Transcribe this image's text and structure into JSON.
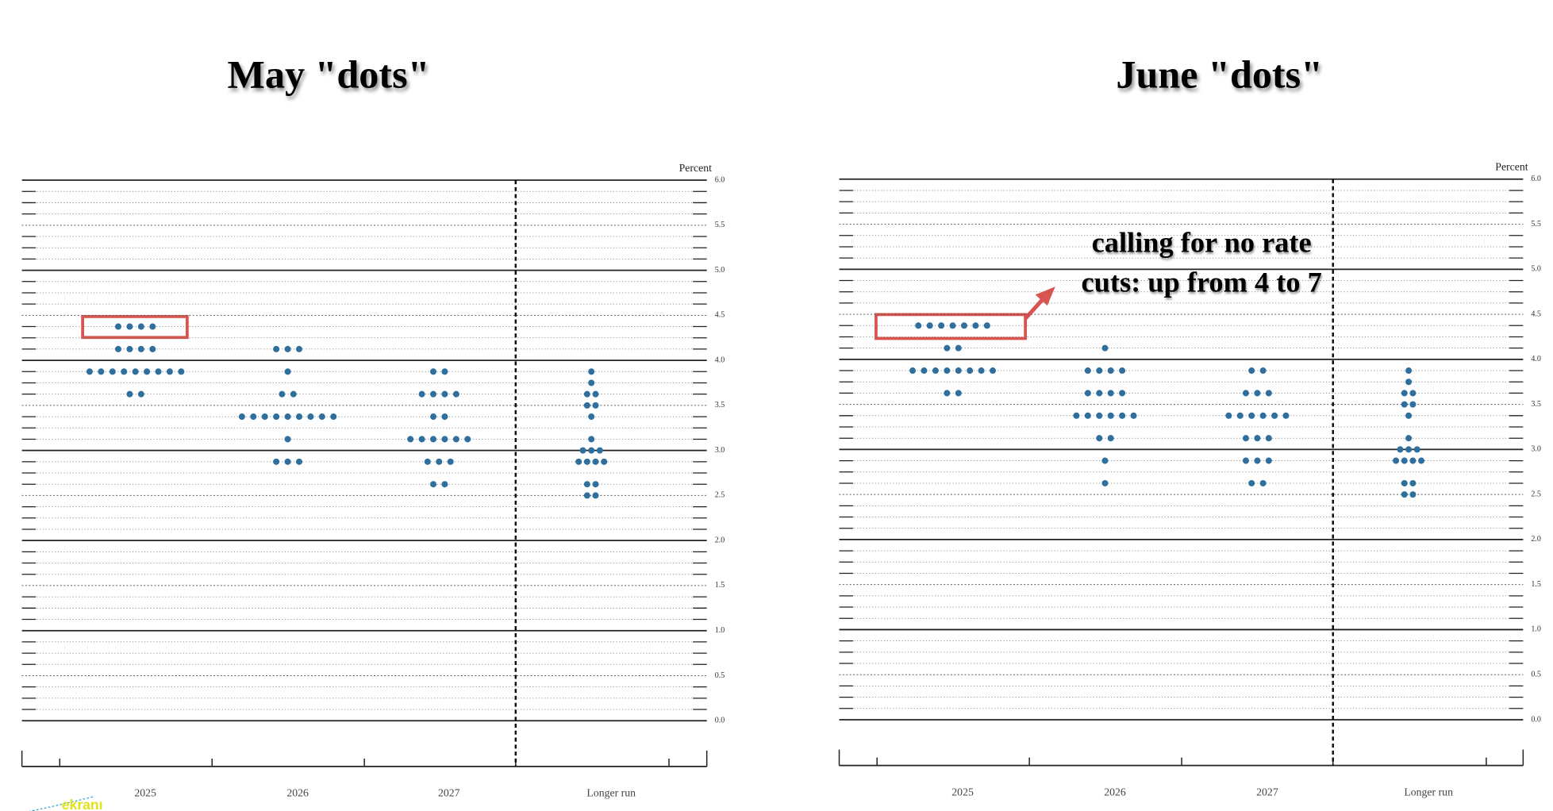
{
  "chart_data": [
    {
      "type": "dot",
      "title": "May \"dots\"",
      "y_label": "Percent",
      "color": "#2e6f9e",
      "categories": [
        "2025",
        "2026",
        "2027",
        "Longer run"
      ],
      "values": [
        [
          4.375,
          4.375,
          4.375,
          4.375,
          4.125,
          4.125,
          4.125,
          4.125,
          3.875,
          3.875,
          3.875,
          3.875,
          3.875,
          3.875,
          3.875,
          3.875,
          3.875,
          3.625,
          3.625
        ],
        [
          4.125,
          4.125,
          4.125,
          3.875,
          3.625,
          3.625,
          3.375,
          3.375,
          3.375,
          3.375,
          3.375,
          3.375,
          3.375,
          3.375,
          3.375,
          3.125,
          2.875,
          2.875,
          2.875
        ],
        [
          3.875,
          3.875,
          3.625,
          3.625,
          3.625,
          3.625,
          3.375,
          3.375,
          3.125,
          3.125,
          3.125,
          3.125,
          3.125,
          3.125,
          2.875,
          2.875,
          2.875,
          2.625,
          2.625
        ],
        [
          3.875,
          3.75,
          3.625,
          3.625,
          3.5,
          3.5,
          3.375,
          3.125,
          3.0,
          3.0,
          3.0,
          2.875,
          2.875,
          2.875,
          2.875,
          2.625,
          2.625,
          2.5,
          2.5
        ]
      ],
      "ylim": [
        0,
        6
      ],
      "yticks": [
        {
          "value": 0,
          "label": "0.0"
        },
        {
          "value": 0.5,
          "label": "0.5"
        },
        {
          "value": 1,
          "label": "1.0"
        },
        {
          "value": 1.5,
          "label": "1.5"
        },
        {
          "value": 2,
          "label": "2.0"
        },
        {
          "value": 2.5,
          "label": "2.5"
        },
        {
          "value": 3,
          "label": "3.0"
        },
        {
          "value": 3.5,
          "label": "3.5"
        },
        {
          "value": 4,
          "label": "4.0"
        },
        {
          "value": 4.5,
          "label": "4.5"
        },
        {
          "value": 5,
          "label": "5.0"
        },
        {
          "value": 5.5,
          "label": "5.5"
        },
        {
          "value": 6,
          "label": "6.0"
        }
      ]
    },
    {
      "type": "dot",
      "title": "June \"dots\"",
      "y_label": "Percent",
      "color": "#2e6f9e",
      "annotation": [
        "calling for no rate",
        "cuts: up from 4 to 7"
      ],
      "categories": [
        "2025",
        "2026",
        "2027",
        "Longer run"
      ],
      "values": [
        [
          4.375,
          4.375,
          4.375,
          4.375,
          4.375,
          4.375,
          4.375,
          4.125,
          4.125,
          3.875,
          3.875,
          3.875,
          3.875,
          3.875,
          3.875,
          3.875,
          3.875,
          3.625,
          3.625
        ],
        [
          4.125,
          3.875,
          3.875,
          3.875,
          3.875,
          3.625,
          3.625,
          3.625,
          3.625,
          3.375,
          3.375,
          3.375,
          3.375,
          3.375,
          3.375,
          3.125,
          3.125,
          2.875,
          2.625
        ],
        [
          3.875,
          3.875,
          3.625,
          3.625,
          3.625,
          3.375,
          3.375,
          3.375,
          3.375,
          3.375,
          3.375,
          3.125,
          3.125,
          3.125,
          2.875,
          2.875,
          2.875,
          2.625,
          2.625
        ],
        [
          3.875,
          3.75,
          3.625,
          3.625,
          3.5,
          3.5,
          3.375,
          3.125,
          3.0,
          3.0,
          3.0,
          2.875,
          2.875,
          2.875,
          2.875,
          2.625,
          2.625,
          2.5,
          2.5
        ]
      ],
      "ylim": [
        0,
        6
      ],
      "yticks": [
        {
          "value": 0,
          "label": "0.0"
        },
        {
          "value": 0.5,
          "label": "0.5"
        },
        {
          "value": 1,
          "label": "1.0"
        },
        {
          "value": 1.5,
          "label": "1.5"
        },
        {
          "value": 2,
          "label": "2.0"
        },
        {
          "value": 2.5,
          "label": "2.5"
        },
        {
          "value": 3,
          "label": "3.0"
        },
        {
          "value": 3.5,
          "label": "3.5"
        },
        {
          "value": 4,
          "label": "4.0"
        },
        {
          "value": 4.5,
          "label": "4.5"
        },
        {
          "value": 5,
          "label": "5.0"
        },
        {
          "value": 5.5,
          "label": "5.5"
        },
        {
          "value": 6,
          "label": "6.0"
        }
      ]
    }
  ],
  "watermark": "ekranı"
}
